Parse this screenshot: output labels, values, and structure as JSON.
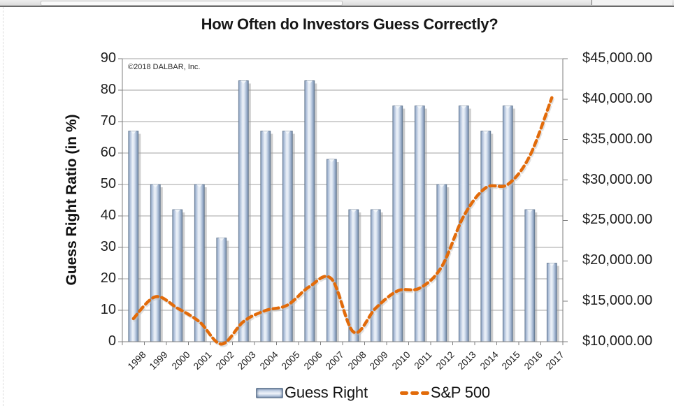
{
  "chart_data": {
    "type": "combo-bar-line",
    "title": "How Often do Investors Guess Correctly?",
    "copyright": "©2018 DALBAR, Inc.",
    "categories": [
      "1998",
      "1999",
      "2000",
      "2001",
      "2002",
      "2003",
      "2004",
      "2005",
      "2006",
      "2007",
      "2008",
      "2009",
      "2010",
      "2011",
      "2012",
      "2013",
      "2014",
      "2015",
      "2016",
      "2017"
    ],
    "series": [
      {
        "name": "Guess Right",
        "type": "bar",
        "axis": "left",
        "values": [
          67,
          50,
          42,
          50,
          33,
          83,
          67,
          67,
          83,
          58,
          42,
          42,
          75,
          75,
          50,
          75,
          67,
          75,
          42,
          25
        ]
      },
      {
        "name": "S&P 500",
        "type": "dashed-line",
        "axis": "right",
        "values": [
          12860,
          15560,
          14150,
          12460,
          9710,
          12500,
          13860,
          14540,
          16830,
          17760,
          11190,
          14150,
          16290,
          16630,
          19290,
          25540,
          29040,
          29450,
          32990,
          40180
        ]
      }
    ],
    "left_axis": {
      "label": "Guess Right Ratio (in %)",
      "min": 0,
      "max": 90,
      "step": 10,
      "ticks": [
        "0",
        "10",
        "20",
        "30",
        "40",
        "50",
        "60",
        "70",
        "80",
        "90"
      ]
    },
    "right_axis": {
      "min": 10000,
      "max": 45000,
      "step": 5000,
      "ticks": [
        "$10,000.00",
        "$15,000.00",
        "$20,000.00",
        "$25,000.00",
        "$30,000.00",
        "$35,000.00",
        "$40,000.00",
        "$45,000.00"
      ]
    },
    "legend": [
      {
        "label": "Guess Right",
        "swatch": "bar"
      },
      {
        "label": "S&P 500",
        "swatch": "dashed-line"
      }
    ],
    "grid": true,
    "legend_position": "bottom",
    "colors": {
      "bar_center": "#edf2f9",
      "bar_edge": "#7e93b0",
      "bar_stroke": "#64788f",
      "bar_shadow": "#9e9e9e",
      "line": "#e26b0a",
      "gridline": "#a3a3a3",
      "axis": "#7f7f7f",
      "text": "#1a1a1a"
    }
  }
}
